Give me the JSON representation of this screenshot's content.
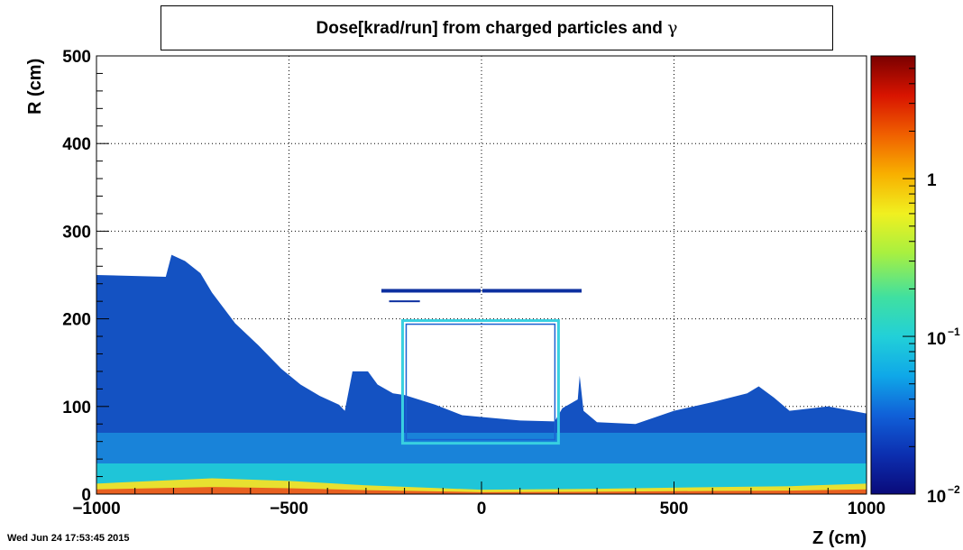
{
  "chart_data": {
    "type": "heatmap",
    "title": "Dose[krad/run] from charged particles and γ",
    "title_prefix": "Dose[krad/run] from charged particles and ",
    "title_symbol": "γ",
    "xlabel": "Z (cm)",
    "ylabel": "R (cm)",
    "xlim": [
      -1000,
      1000
    ],
    "ylim": [
      0,
      500
    ],
    "x_ticks": [
      -1000,
      -500,
      0,
      500,
      1000
    ],
    "x_tick_labels": [
      "−1000",
      "−500",
      "0",
      "500",
      "1000"
    ],
    "y_ticks": [
      0,
      100,
      200,
      300,
      400,
      500
    ],
    "y_tick_labels": [
      "0",
      "100",
      "200",
      "300",
      "400",
      "500"
    ],
    "grid": true,
    "colorbar": {
      "scale": "log",
      "range": [
        0.01,
        6
      ],
      "labels": [
        {
          "value": 1,
          "base": "1",
          "exp": ""
        },
        {
          "value": 0.1,
          "base": "10",
          "exp": "−1"
        },
        {
          "value": 0.01,
          "base": "10",
          "exp": "−2"
        }
      ],
      "colors": [
        "#0a0a7a",
        "#0c2fb0",
        "#1060d8",
        "#0fa8e8",
        "#22d0d8",
        "#40e0a0",
        "#a8f040",
        "#f0f020",
        "#f8b000",
        "#f06000",
        "#d81400",
        "#7a0000"
      ]
    },
    "dose_region_top": [
      [
        -1000,
        250
      ],
      [
        -820,
        248
      ],
      [
        -805,
        273
      ],
      [
        -770,
        266
      ],
      [
        -730,
        252
      ],
      [
        -700,
        230
      ],
      [
        -640,
        195
      ],
      [
        -580,
        170
      ],
      [
        -520,
        143
      ],
      [
        -470,
        125
      ],
      [
        -420,
        112
      ],
      [
        -370,
        102
      ],
      [
        -355,
        95
      ],
      [
        -335,
        140
      ],
      [
        -295,
        140
      ],
      [
        -270,
        125
      ],
      [
        -230,
        115
      ],
      [
        -200,
        113
      ],
      [
        -120,
        102
      ],
      [
        -50,
        90
      ],
      [
        0,
        88
      ],
      [
        100,
        84
      ],
      [
        190,
        83
      ],
      [
        210,
        98
      ],
      [
        250,
        108
      ],
      [
        255,
        135
      ],
      [
        265,
        95
      ],
      [
        300,
        82
      ],
      [
        400,
        80
      ],
      [
        500,
        95
      ],
      [
        600,
        105
      ],
      [
        690,
        115
      ],
      [
        720,
        123
      ],
      [
        760,
        110
      ],
      [
        800,
        95
      ],
      [
        900,
        100
      ],
      [
        1000,
        92
      ]
    ],
    "bright_band": [
      [
        -1000,
        12
      ],
      [
        -700,
        18
      ],
      [
        -500,
        15
      ],
      [
        -300,
        10
      ],
      [
        0,
        5
      ],
      [
        300,
        6
      ],
      [
        600,
        8
      ],
      [
        800,
        9
      ],
      [
        1000,
        12
      ]
    ],
    "inner_box": {
      "z": [
        -205,
        200
      ],
      "r": [
        58,
        198
      ]
    },
    "horizontal_bar": {
      "z": [
        -260,
        260
      ],
      "r": 232
    },
    "small_bar": {
      "z": [
        -240,
        -160
      ],
      "r": 220
    },
    "timestamp": "Wed Jun 24 17:53:45 2015"
  }
}
